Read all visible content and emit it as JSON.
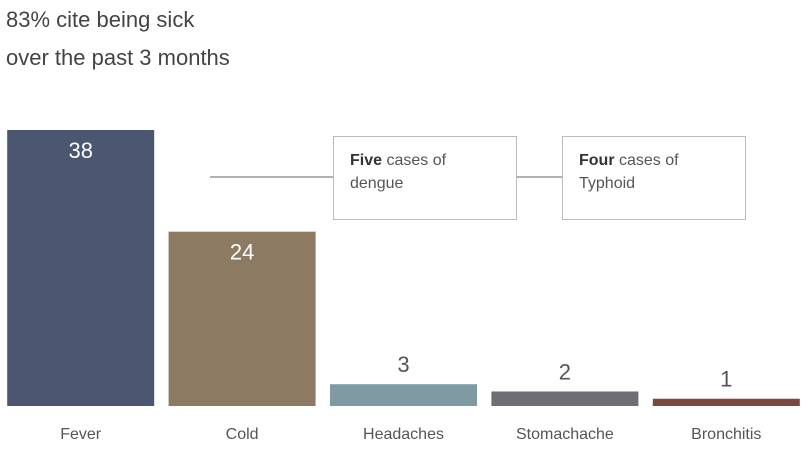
{
  "chart_data": {
    "type": "bar",
    "title": [
      "83% cite being sick",
      "over the past 3 months"
    ],
    "categories": [
      "Fever",
      "Cold",
      "Headaches",
      "Stomachache",
      "Bronchitis"
    ],
    "values": [
      38,
      24,
      3,
      2,
      1
    ],
    "colors": [
      "#4b5670",
      "#8c7b62",
      "#7f9aa3",
      "#6e6e74",
      "#7a4a3e"
    ],
    "annotations": [
      {
        "emphasis": "Five",
        "text": "cases of dengue"
      },
      {
        "emphasis": "Four",
        "text": "cases of Typhoid"
      }
    ]
  }
}
